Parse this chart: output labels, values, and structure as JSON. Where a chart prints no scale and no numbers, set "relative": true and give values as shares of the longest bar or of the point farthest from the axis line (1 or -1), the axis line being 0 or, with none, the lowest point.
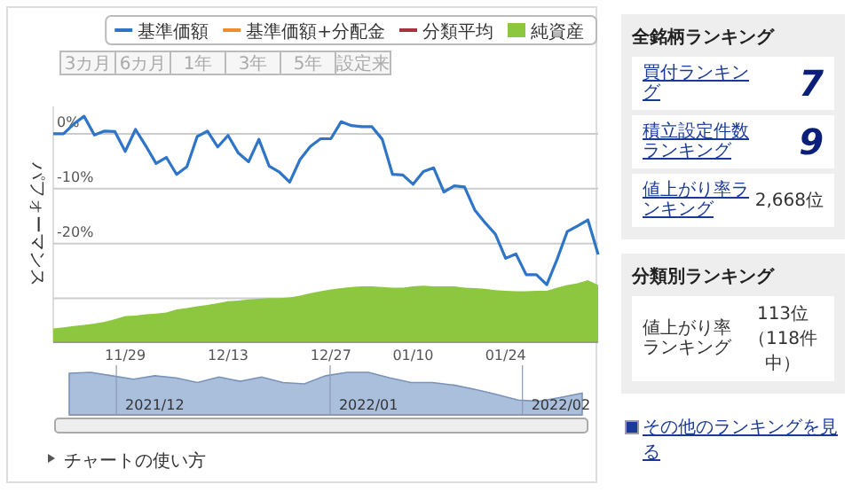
{
  "chart_data": [
    {
      "type": "line",
      "ylabel": "パフォーマンス",
      "legend": "top right",
      "grid": "y",
      "marker": "none",
      "line_style": "solid",
      "annotations": [
        "3カ月",
        "6カ月",
        "1年",
        "3年",
        "5年",
        "設定来",
        "チャートの使い方"
      ],
      "categories": [
        null,
        null,
        null,
        null,
        null,
        null,
        null,
        "11/29",
        null,
        null,
        null,
        null,
        null,
        null,
        null,
        null,
        null,
        "12/13",
        null,
        null,
        null,
        null,
        null,
        null,
        null,
        null,
        null,
        "12/27",
        null,
        null,
        null,
        null,
        null,
        null,
        null,
        "01/10",
        null,
        null,
        null,
        null,
        null,
        null,
        null,
        null,
        "01/24",
        null,
        null,
        null,
        null,
        null,
        null,
        null,
        null,
        null
      ],
      "ylim": [
        -38,
        5
      ],
      "yticks": [
        {
          "value": 0,
          "label": "0%"
        },
        {
          "value": -10,
          "label": "-10%"
        },
        {
          "value": -20,
          "label": "-20%"
        },
        {
          "value": -30,
          "label": null
        }
      ],
      "series": [
        {
          "name": "基準価額",
          "color": "#2e75c8",
          "values": [
            0,
            0,
            1.8,
            3.2,
            -0.2,
            0.5,
            0.4,
            -3.2,
            0.8,
            -2.2,
            -5.4,
            -4.3,
            -7.4,
            -6.0,
            -0.5,
            0.5,
            -2.4,
            -0.3,
            -3.5,
            -5.1,
            -1.0,
            -5.9,
            -7.0,
            -8.8,
            -4.7,
            -2.3,
            -0.9,
            -0.9,
            2.2,
            1.5,
            1.3,
            1.3,
            -1.0,
            -7.4,
            -7.5,
            -9.2,
            -6.9,
            -6.2,
            -10.6,
            -9.5,
            -9.7,
            -13.9,
            -16.2,
            -18.3,
            -22.7,
            -21.9,
            -25.7,
            -25.7,
            -27.5,
            -22.9,
            -17.8,
            -16.8,
            -15.7,
            -22.0
          ]
        },
        {
          "name": "基準価額+分配金",
          "color": "#f28c28",
          "values": [
            null,
            null,
            null,
            null,
            null,
            null,
            null,
            null,
            null,
            null,
            null,
            null,
            null,
            null,
            null,
            null,
            null,
            null,
            null,
            null,
            null,
            null,
            null,
            null,
            null,
            null,
            null,
            null,
            null,
            null,
            null,
            null,
            null,
            null,
            null,
            null,
            null,
            null,
            null,
            null,
            null,
            null,
            null,
            null,
            null,
            null,
            null,
            null,
            null,
            null,
            null,
            null,
            null,
            null
          ]
        },
        {
          "name": "分類平均",
          "color": "#a8323e",
          "values": [
            null,
            null,
            null,
            null,
            null,
            null,
            null,
            null,
            null,
            null,
            null,
            null,
            null,
            null,
            null,
            null,
            null,
            null,
            null,
            null,
            null,
            null,
            null,
            null,
            null,
            null,
            null,
            null,
            null,
            null,
            null,
            null,
            null,
            null,
            null,
            null,
            null,
            null,
            null,
            null,
            null,
            null,
            null,
            null,
            null,
            null,
            null,
            null,
            null,
            null,
            null,
            null,
            null,
            null
          ]
        }
      ]
    },
    {
      "type": "area",
      "relative": true,
      "categories": [
        null,
        null,
        null,
        null,
        null,
        null,
        null,
        null,
        null,
        null,
        null,
        null,
        null,
        null,
        null,
        null,
        null,
        null,
        null,
        null,
        null,
        null,
        null,
        null,
        null,
        null,
        null,
        null,
        null,
        null,
        null,
        null,
        null,
        null,
        null,
        null,
        null,
        null,
        null,
        null,
        null,
        null,
        null,
        null,
        null,
        null,
        null,
        null,
        null,
        null,
        null,
        null,
        null,
        null
      ],
      "series": [
        {
          "name": "純資産",
          "color": "#8dc63f",
          "values": [
            0.22,
            0.24,
            0.26,
            0.28,
            0.3,
            0.33,
            0.37,
            0.42,
            0.43,
            0.45,
            0.46,
            0.48,
            0.53,
            0.55,
            0.58,
            0.6,
            0.63,
            0.66,
            0.67,
            0.69,
            0.7,
            0.71,
            0.71,
            0.72,
            0.75,
            0.79,
            0.82,
            0.85,
            0.87,
            0.89,
            0.9,
            0.9,
            0.89,
            0.88,
            0.88,
            0.9,
            0.91,
            0.9,
            0.9,
            0.9,
            0.88,
            0.87,
            0.86,
            0.84,
            0.83,
            0.82,
            0.82,
            0.83,
            0.83,
            0.88,
            0.92,
            0.95,
            1,
            0.92
          ]
        }
      ]
    },
    {
      "type": "area",
      "relative": true,
      "color": "#a9bfdc",
      "grid": "x",
      "categories": [
        null,
        null,
        null,
        null,
        "2021/12",
        null,
        null,
        null,
        null,
        null,
        null,
        null,
        null,
        null,
        "2022/01",
        null,
        null,
        null,
        null,
        null,
        null,
        null,
        null,
        "2022/02",
        null
      ],
      "values": [
        0.98,
        1,
        0.92,
        0.84,
        0.92,
        0.87,
        0.76,
        0.89,
        0.79,
        0.89,
        0.76,
        0.73,
        0.92,
        1,
        1,
        0.87,
        0.76,
        0.76,
        0.7,
        0.6,
        0.48,
        0.35,
        0.32,
        0.41,
        0.51
      ]
    },
    {
      "type": "other",
      "title": "全銘柄ランキング",
      "categories": [
        "買付ランキング",
        "積立設定件数ランキング",
        "値上がり率ランキング"
      ],
      "value_labels": [
        "7",
        "9",
        "2,668位"
      ]
    },
    {
      "type": "other",
      "title": "分類別ランキング",
      "categories": [
        "値上がり率ランキング"
      ],
      "value_labels": [
        "113位（118件中）"
      ],
      "annotations": [
        "その他のランキングを見る"
      ]
    }
  ]
}
